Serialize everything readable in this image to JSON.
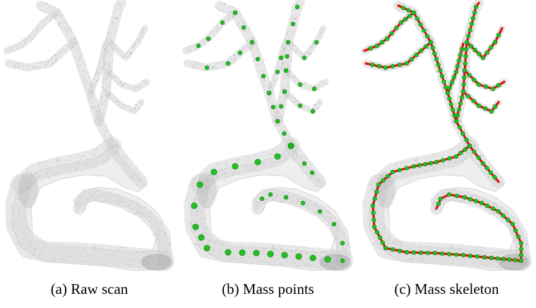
{
  "figure": {
    "panels": [
      {
        "id": "a",
        "caption": "(a) Raw scan",
        "show_points": false,
        "show_skeleton": false
      },
      {
        "id": "b",
        "caption": "(b) Mass points",
        "show_points": true,
        "show_skeleton": false
      },
      {
        "id": "c",
        "caption": "(c) Mass skeleton",
        "show_points": true,
        "show_skeleton": true
      }
    ],
    "colors": {
      "point_cloud": "#8a8a8a",
      "mass_point": "#22c022",
      "mass_point_dark": "#0a7a0a",
      "skeleton": "#e01010"
    }
  }
}
